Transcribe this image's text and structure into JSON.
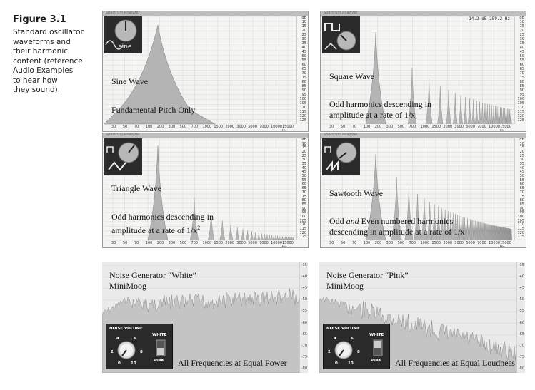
{
  "caption": {
    "figure": "Figure 3.1",
    "lines": [
      "Standard oscillator",
      "waveforms and",
      "their harmonic",
      "content (reference",
      "Audio Examples",
      "to hear how",
      "they sound)."
    ]
  },
  "analyzer": {
    "window_title": "Spectrum Analyzer",
    "y_ticks": [
      "dB",
      "10",
      "15",
      "20",
      "25",
      "30",
      "35",
      "40",
      "45",
      "50",
      "55",
      "60",
      "65",
      "70",
      "75",
      "80",
      "85",
      "90",
      "95",
      "100",
      "105",
      "110",
      "115",
      "120",
      "125"
    ],
    "x_ticks": [
      "30",
      "50",
      "70",
      "100",
      "200",
      "300",
      "500",
      "700",
      "1000",
      "1500",
      "2000",
      "3000",
      "5000",
      "7000",
      "10000",
      "15000 Hz"
    ]
  },
  "panels": {
    "sine": {
      "thumb_label": "sine",
      "title": "Sine Wave",
      "desc": "Fundamental Pitch Only"
    },
    "square": {
      "readout": "-14.2 dB 259.2 Hz",
      "title": "Square Wave",
      "desc_l1": "Odd harmonics descending in",
      "desc_l2": "amplitude at a rate of 1/x"
    },
    "triangle": {
      "title": "Triangle Wave",
      "desc_l1": "Odd harmonics descending in",
      "desc_l2": "amplitude at a rate of 1/x",
      "superscript": "2"
    },
    "sawtooth": {
      "title": "Sawtooth Wave",
      "desc_l1_a": "Odd ",
      "desc_l1_b": "and",
      "desc_l1_c": " Even numbered harmonics",
      "desc_l2": "descending in amplitude at a rate of 1/x"
    },
    "white": {
      "title_l1": "Noise Generator “White”",
      "title_l2": "MiniMoog",
      "desc": "All Frequencies at Equal Power"
    },
    "pink": {
      "title_l1": "Noise Generator “Pink”",
      "title_l2": "MiniMoog",
      "desc": "All Frequencies at Equal Loudness"
    }
  },
  "noise_control": {
    "title": "NOISE VOLUME",
    "white": "WHITE",
    "pink": "PINK",
    "scale": [
      "2",
      "4",
      "6",
      "8",
      "0",
      "10"
    ]
  },
  "noise_y_ticks": [
    "-35",
    "-40",
    "-45",
    "-50",
    "-55",
    "-60",
    "-65",
    "-70",
    "-75",
    "-80"
  ]
}
